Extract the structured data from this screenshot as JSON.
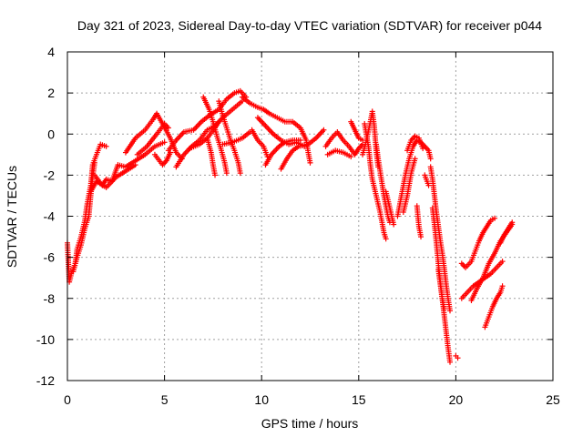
{
  "chart_data": {
    "type": "scatter",
    "title": "Day 321 of 2023, Sidereal Day-to-day VTEC variation (SDTVAR) for receiver p044",
    "xlabel": "GPS time / hours",
    "ylabel": "SDTVAR / TECUs",
    "xlim": [
      0,
      25
    ],
    "ylim": [
      -12,
      4
    ],
    "xticks": [
      0,
      5,
      10,
      15,
      20,
      25
    ],
    "yticks": [
      -12,
      -10,
      -8,
      -6,
      -4,
      -2,
      0,
      2,
      4
    ],
    "grid": true,
    "marker": "plus",
    "color": "#ff0000",
    "series": [
      {
        "name": "SDTVAR",
        "traces": [
          [
            [
              0.0,
              -5.3
            ],
            [
              0.1,
              -7.2
            ],
            [
              0.2,
              -6.8
            ],
            [
              0.4,
              -6.3
            ],
            [
              0.5,
              -5.6
            ],
            [
              0.7,
              -5.0
            ],
            [
              0.9,
              -4.2
            ],
            [
              1.0,
              -3.5
            ],
            [
              1.2,
              -2.5
            ],
            [
              1.3,
              -1.5
            ],
            [
              1.5,
              -1.0
            ],
            [
              1.7,
              -0.5
            ],
            [
              2.0,
              -0.6
            ]
          ],
          [
            [
              0.3,
              -6.7
            ],
            [
              0.5,
              -6.0
            ],
            [
              0.7,
              -5.4
            ],
            [
              0.9,
              -4.6
            ],
            [
              1.1,
              -4.0
            ],
            [
              1.2,
              -3.0
            ],
            [
              1.3,
              -2.1
            ],
            [
              1.4,
              -1.4
            ]
          ],
          [
            [
              1.4,
              -2.0
            ],
            [
              1.8,
              -2.5
            ],
            [
              2.0,
              -2.2
            ],
            [
              2.3,
              -2.3
            ],
            [
              2.6,
              -1.5
            ],
            [
              3.0,
              -1.6
            ],
            [
              3.5,
              -1.3
            ],
            [
              4.0,
              -1.0
            ],
            [
              4.5,
              -0.6
            ],
            [
              5.0,
              -0.4
            ]
          ],
          [
            [
              1.2,
              -2.8
            ],
            [
              1.5,
              -2.3
            ],
            [
              2.0,
              -2.6
            ],
            [
              2.5,
              -2.1
            ],
            [
              3.0,
              -1.8
            ],
            [
              3.5,
              -1.5
            ]
          ],
          [
            [
              3.0,
              -0.9
            ],
            [
              3.5,
              -0.2
            ],
            [
              4.0,
              0.2
            ],
            [
              4.4,
              0.7
            ],
            [
              4.6,
              1.0
            ],
            [
              4.9,
              0.5
            ],
            [
              5.3,
              -0.2
            ],
            [
              5.6,
              -0.9
            ],
            [
              5.9,
              -1.2
            ]
          ],
          [
            [
              3.6,
              -1.0
            ],
            [
              4.1,
              -0.6
            ],
            [
              4.6,
              0.0
            ],
            [
              5.0,
              0.5
            ],
            [
              5.2,
              0.3
            ]
          ],
          [
            [
              4.5,
              -1.0
            ],
            [
              4.9,
              -1.5
            ],
            [
              5.1,
              -1.3
            ],
            [
              5.3,
              -0.9
            ]
          ],
          [
            [
              5.2,
              -0.8
            ],
            [
              5.6,
              -0.3
            ],
            [
              6.0,
              0.1
            ],
            [
              6.5,
              0.2
            ],
            [
              6.9,
              0.6
            ],
            [
              7.3,
              0.9
            ],
            [
              7.8,
              1.2
            ],
            [
              8.2,
              1.7
            ],
            [
              8.6,
              2.0
            ],
            [
              8.9,
              2.1
            ],
            [
              9.2,
              1.8
            ]
          ],
          [
            [
              5.6,
              -1.6
            ],
            [
              6.0,
              -1.0
            ],
            [
              6.4,
              -0.6
            ],
            [
              6.8,
              -0.3
            ],
            [
              7.2,
              0.2
            ],
            [
              7.6,
              0.4
            ],
            [
              8.0,
              0.8
            ],
            [
              8.5,
              1.2
            ],
            [
              9.0,
              1.6
            ]
          ],
          [
            [
              6.3,
              -0.7
            ],
            [
              6.8,
              -0.5
            ],
            [
              7.2,
              -0.2
            ],
            [
              7.6,
              0.3
            ],
            [
              7.8,
              0.6
            ]
          ],
          [
            [
              7.0,
              1.8
            ],
            [
              7.3,
              1.2
            ],
            [
              7.5,
              0.6
            ],
            [
              7.7,
              -0.1
            ],
            [
              7.9,
              -0.7
            ],
            [
              8.1,
              -1.4
            ],
            [
              8.2,
              -1.9
            ]
          ],
          [
            [
              7.2,
              -0.2
            ],
            [
              7.4,
              -0.9
            ],
            [
              7.5,
              -1.5
            ],
            [
              7.6,
              -2.0
            ]
          ],
          [
            [
              7.8,
              1.6
            ],
            [
              8.0,
              0.9
            ],
            [
              8.2,
              0.3
            ],
            [
              8.4,
              -0.3
            ],
            [
              8.6,
              -0.8
            ],
            [
              8.8,
              -1.4
            ],
            [
              8.9,
              -1.9
            ]
          ],
          [
            [
              8.0,
              -0.5
            ],
            [
              8.5,
              -0.4
            ],
            [
              9.0,
              -0.2
            ],
            [
              9.4,
              0.1
            ]
          ],
          [
            [
              9.0,
              1.8
            ],
            [
              9.4,
              1.5
            ],
            [
              9.8,
              1.3
            ],
            [
              10.1,
              1.2
            ],
            [
              10.4,
              1.0
            ],
            [
              10.8,
              0.8
            ],
            [
              11.2,
              0.6
            ],
            [
              11.6,
              0.6
            ],
            [
              12.0,
              0.3
            ],
            [
              12.3,
              -0.3
            ],
            [
              12.4,
              -0.9
            ],
            [
              12.5,
              -1.4
            ]
          ],
          [
            [
              9.8,
              0.8
            ],
            [
              10.2,
              0.4
            ],
            [
              10.6,
              0.0
            ],
            [
              11.0,
              -0.3
            ],
            [
              11.4,
              -0.5
            ],
            [
              11.8,
              -0.4
            ],
            [
              12.2,
              -0.6
            ]
          ],
          [
            [
              9.5,
              0.2
            ],
            [
              9.8,
              -0.3
            ],
            [
              10.1,
              -0.6
            ],
            [
              10.3,
              -1.1
            ]
          ],
          [
            [
              10.2,
              -1.5
            ],
            [
              10.5,
              -1.0
            ],
            [
              10.9,
              -0.6
            ],
            [
              11.2,
              -0.4
            ],
            [
              11.6,
              -0.3
            ],
            [
              12.0,
              -0.3
            ]
          ],
          [
            [
              11.0,
              -1.7
            ],
            [
              11.3,
              -1.2
            ],
            [
              11.6,
              -0.8
            ],
            [
              11.9,
              -0.6
            ],
            [
              12.4,
              -0.5
            ],
            [
              12.8,
              -0.2
            ],
            [
              13.2,
              0.2
            ]
          ],
          [
            [
              13.3,
              -0.6
            ],
            [
              13.6,
              -0.2
            ],
            [
              13.9,
              0.1
            ],
            [
              14.2,
              -0.3
            ],
            [
              14.5,
              -0.6
            ],
            [
              14.8,
              -1.0
            ],
            [
              15.0,
              -0.7
            ],
            [
              15.2,
              -0.5
            ]
          ],
          [
            [
              13.4,
              -1.0
            ],
            [
              13.8,
              -0.8
            ],
            [
              14.2,
              -0.9
            ],
            [
              14.6,
              -1.1
            ]
          ],
          [
            [
              14.6,
              0.6
            ],
            [
              14.8,
              0.2
            ],
            [
              15.0,
              -0.2
            ],
            [
              15.2,
              -0.3
            ]
          ],
          [
            [
              15.2,
              -1.0
            ],
            [
              15.4,
              -0.3
            ],
            [
              15.6,
              0.6
            ],
            [
              15.7,
              1.1
            ],
            [
              15.8,
              0.4
            ],
            [
              15.9,
              -0.8
            ],
            [
              16.0,
              -1.6
            ]
          ],
          [
            [
              15.3,
              0.5
            ],
            [
              15.5,
              -0.6
            ],
            [
              15.6,
              -1.5
            ],
            [
              15.7,
              -2.2
            ],
            [
              15.8,
              -2.6
            ],
            [
              15.9,
              -3.0
            ],
            [
              16.0,
              -3.4
            ],
            [
              16.1,
              -3.8
            ],
            [
              16.2,
              -4.3
            ],
            [
              16.3,
              -4.8
            ],
            [
              16.4,
              -5.1
            ]
          ],
          [
            [
              15.9,
              -0.5
            ],
            [
              16.0,
              -1.2
            ],
            [
              16.1,
              -1.8
            ],
            [
              16.2,
              -2.4
            ],
            [
              16.3,
              -3.0
            ],
            [
              16.4,
              -3.5
            ],
            [
              16.5,
              -4.0
            ],
            [
              16.6,
              -4.3
            ]
          ],
          [
            [
              16.4,
              -2.8
            ],
            [
              16.5,
              -3.2
            ],
            [
              16.6,
              -3.6
            ],
            [
              16.7,
              -4.0
            ],
            [
              16.8,
              -4.4
            ]
          ],
          [
            [
              17.0,
              -4.0
            ],
            [
              17.2,
              -3.0
            ],
            [
              17.4,
              -2.0
            ],
            [
              17.6,
              -1.2
            ],
            [
              17.8,
              -0.6
            ],
            [
              18.0,
              -0.3
            ],
            [
              18.2,
              -0.4
            ],
            [
              18.4,
              -0.6
            ],
            [
              18.6,
              -0.8
            ],
            [
              18.7,
              -1.2
            ]
          ],
          [
            [
              17.5,
              -0.8
            ],
            [
              17.7,
              -0.3
            ],
            [
              17.9,
              -0.1
            ],
            [
              18.1,
              -0.2
            ],
            [
              18.3,
              -0.7
            ]
          ],
          [
            [
              17.3,
              -3.8
            ],
            [
              17.5,
              -3.0
            ],
            [
              17.7,
              -1.9
            ],
            [
              17.9,
              -1.2
            ]
          ],
          [
            [
              18.0,
              -3.5
            ],
            [
              18.1,
              -4.5
            ],
            [
              18.2,
              -5.0
            ]
          ],
          [
            [
              18.4,
              -2.0
            ],
            [
              18.6,
              -2.5
            ]
          ],
          [
            [
              18.7,
              -1.6
            ],
            [
              18.8,
              -2.2
            ],
            [
              18.9,
              -3.0
            ],
            [
              19.0,
              -3.8
            ],
            [
              19.1,
              -4.5
            ],
            [
              19.2,
              -5.2
            ],
            [
              19.3,
              -5.8
            ],
            [
              19.4,
              -6.5
            ],
            [
              19.5,
              -7.3
            ],
            [
              19.6,
              -8.0
            ],
            [
              19.7,
              -8.6
            ]
          ],
          [
            [
              18.8,
              -3.6
            ],
            [
              18.9,
              -4.4
            ],
            [
              19.0,
              -5.3
            ],
            [
              19.1,
              -6.3
            ],
            [
              19.2,
              -7.2
            ],
            [
              19.3,
              -8.0
            ],
            [
              19.4,
              -8.8
            ],
            [
              19.5,
              -9.6
            ],
            [
              19.6,
              -10.4
            ],
            [
              19.7,
              -11.1
            ]
          ],
          [
            [
              19.1,
              -6.6
            ],
            [
              19.2,
              -7.3
            ],
            [
              19.3,
              -8.0
            ],
            [
              19.4,
              -8.5
            ]
          ],
          [
            [
              20.0,
              -10.8
            ],
            [
              20.1,
              -10.9
            ]
          ],
          [
            [
              20.3,
              -6.3
            ],
            [
              20.5,
              -6.5
            ],
            [
              20.8,
              -6.2
            ],
            [
              21.0,
              -5.7
            ],
            [
              21.2,
              -5.2
            ],
            [
              21.4,
              -4.8
            ],
            [
              21.6,
              -4.5
            ],
            [
              21.8,
              -4.2
            ],
            [
              22.0,
              -4.1
            ]
          ],
          [
            [
              20.3,
              -8.0
            ],
            [
              20.6,
              -7.7
            ],
            [
              20.9,
              -7.4
            ],
            [
              21.2,
              -7.2
            ],
            [
              21.5,
              -7.0
            ],
            [
              21.8,
              -6.8
            ],
            [
              22.1,
              -6.5
            ],
            [
              22.4,
              -6.2
            ]
          ],
          [
            [
              20.8,
              -8.1
            ],
            [
              21.1,
              -7.5
            ],
            [
              21.4,
              -7.0
            ],
            [
              21.7,
              -6.3
            ],
            [
              22.0,
              -5.8
            ],
            [
              22.3,
              -5.2
            ],
            [
              22.6,
              -4.8
            ],
            [
              22.9,
              -4.4
            ]
          ],
          [
            [
              21.5,
              -9.4
            ],
            [
              21.7,
              -8.9
            ],
            [
              21.9,
              -8.4
            ],
            [
              22.1,
              -8.0
            ],
            [
              22.3,
              -7.7
            ],
            [
              22.4,
              -7.4
            ]
          ],
          [
            [
              22.3,
              -5.3
            ],
            [
              22.5,
              -4.9
            ],
            [
              22.7,
              -4.6
            ],
            [
              22.9,
              -4.3
            ]
          ]
        ]
      }
    ]
  }
}
